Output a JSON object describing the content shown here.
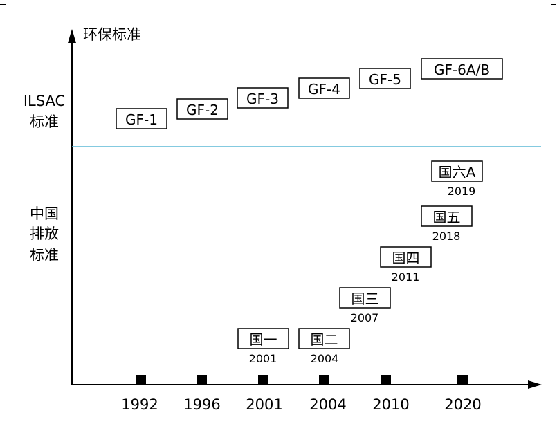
{
  "y_axis_title": "环保标准",
  "sections": {
    "ilsac": [
      "ILSAC",
      "标准"
    ],
    "china": [
      "中国",
      "排放",
      "标准"
    ]
  },
  "x_axis": {
    "ticks": [
      "1992",
      "1996",
      "2001",
      "2004",
      "2010",
      "2020"
    ]
  },
  "ilsac_standards": [
    {
      "label": "GF-1"
    },
    {
      "label": "GF-2"
    },
    {
      "label": "GF-3"
    },
    {
      "label": "GF-4"
    },
    {
      "label": "GF-5"
    },
    {
      "label": "GF-6A/B"
    }
  ],
  "china_standards": [
    {
      "label": "国一",
      "year": "2001"
    },
    {
      "label": "国二",
      "year": "2004"
    },
    {
      "label": "国三",
      "year": "2007"
    },
    {
      "label": "国四",
      "year": "2011"
    },
    {
      "label": "国五",
      "year": "2018"
    },
    {
      "label": "国六A",
      "year": "2019"
    }
  ],
  "colors": {
    "divider": "#5bb8d6",
    "axis": "#000000",
    "box_border": "#000000"
  }
}
